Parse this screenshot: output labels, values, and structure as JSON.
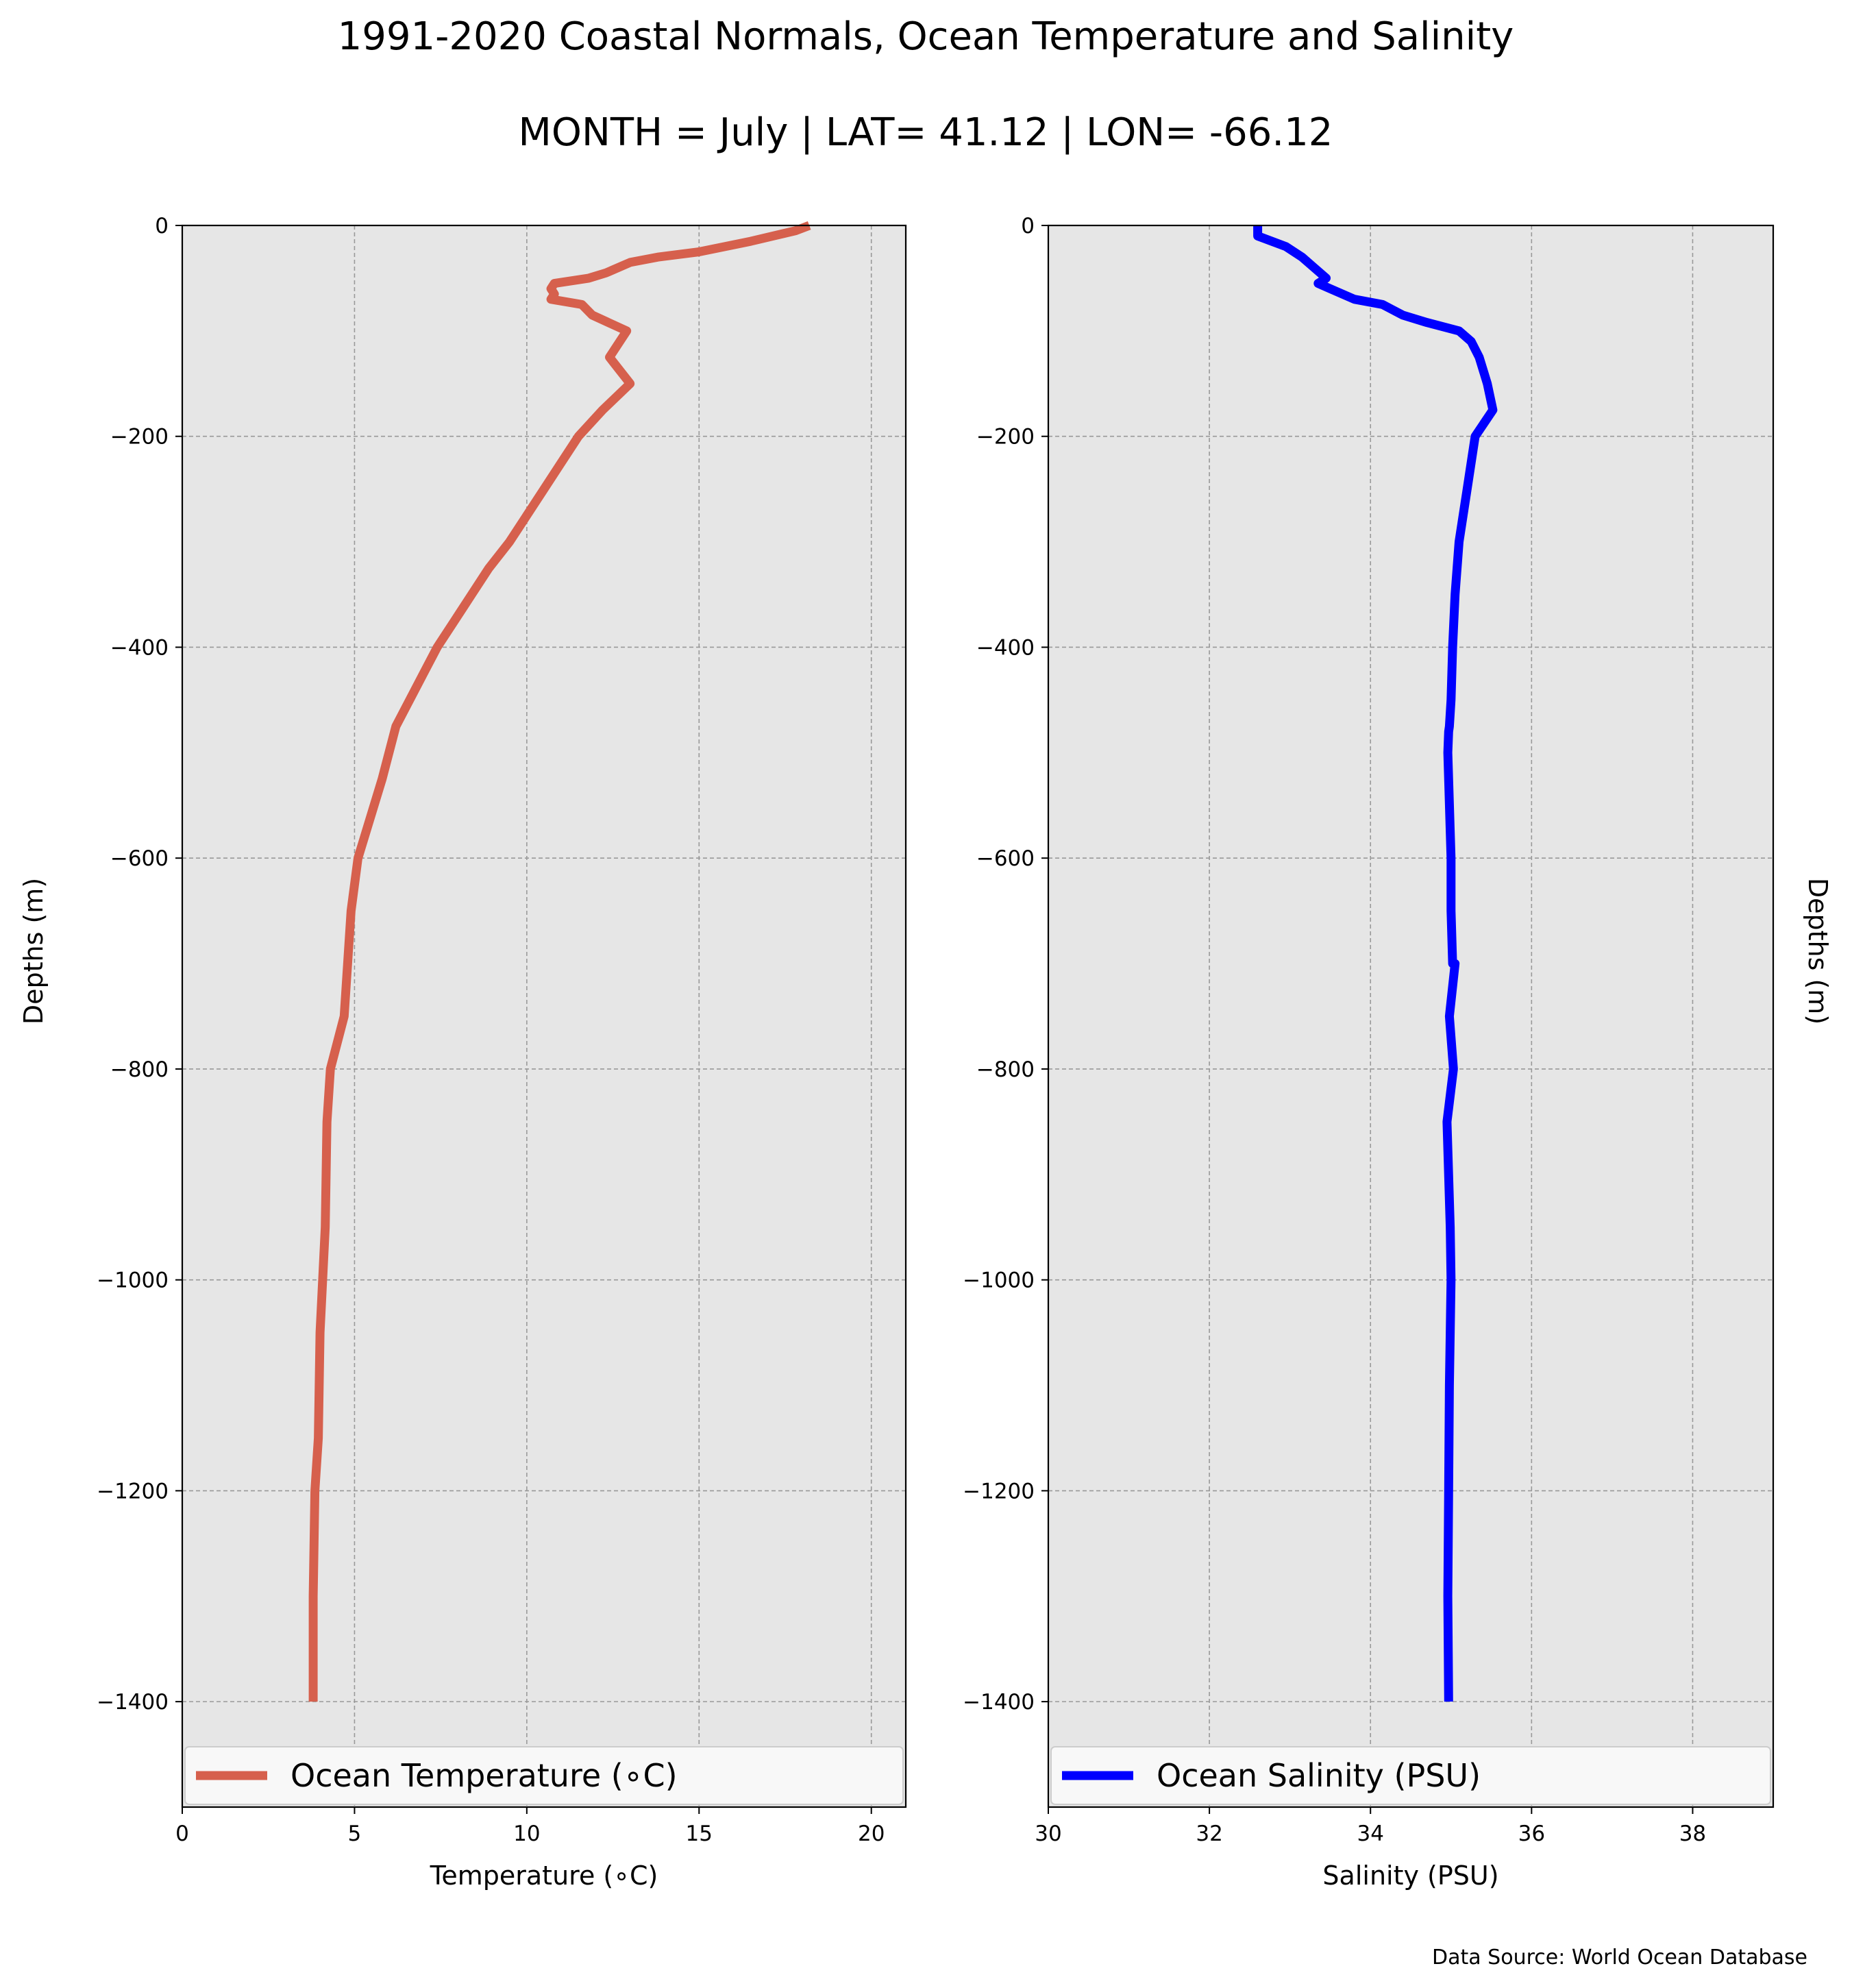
{
  "figure": {
    "title": "1991-2020 Coastal Normals, Ocean Temperature and Salinity",
    "subtitle": "MONTH = July | LAT= 41.12 | LON= -66.12",
    "source": "Data Source: World Ocean Database"
  },
  "chart_data": [
    {
      "type": "line",
      "xlabel": "Temperature ($^\\circ$C)",
      "xlabel_display": "Temperature (∘C)",
      "ylabel": "Depths (m)",
      "xlim": [
        0,
        21
      ],
      "ylim": [
        -1500,
        0
      ],
      "xticks": [
        0,
        5,
        10,
        15,
        20
      ],
      "xtick_labels": [
        "0",
        "5",
        "10",
        "15",
        "20"
      ],
      "yticks": [
        0,
        -200,
        -400,
        -600,
        -800,
        -1000,
        -1200,
        -1400
      ],
      "ytick_labels": [
        "0",
        "−200",
        "−400",
        "−600",
        "−800",
        "−1000",
        "−1200",
        "−1400"
      ],
      "grid": true,
      "legend_position": "bottom",
      "series": [
        {
          "name": "Ocean Temperature (∘C)",
          "color": "#d6604d",
          "x": [
            18.2,
            17.8,
            16.5,
            15.0,
            13.8,
            13.0,
            12.3,
            11.8,
            10.8,
            10.7,
            10.8,
            10.7,
            11.6,
            11.9,
            12.9,
            12.4,
            13.0,
            12.2,
            11.5,
            11.0,
            10.5,
            10.0,
            9.5,
            8.9,
            8.4,
            7.9,
            7.4,
            7.0,
            6.6,
            6.2,
            5.8,
            5.1,
            4.9,
            4.7,
            4.3,
            4.2,
            4.15,
            4.0,
            3.95,
            3.85,
            3.8,
            3.8
          ],
          "y": [
            0,
            -5,
            -15,
            -25,
            -30,
            -35,
            -45,
            -50,
            -55,
            -60,
            -65,
            -70,
            -75,
            -85,
            -100,
            -125,
            -150,
            -175,
            -200,
            -225,
            -250,
            -275,
            -300,
            -325,
            -350,
            -375,
            -400,
            -425,
            -450,
            -475,
            -525,
            -600,
            -650,
            -750,
            -800,
            -850,
            -950,
            -1050,
            -1150,
            -1200,
            -1300,
            -1400
          ]
        }
      ]
    },
    {
      "type": "line",
      "xlabel": "Salinity (PSU)",
      "ylabel": "Depths (m)",
      "xlim": [
        30,
        39
      ],
      "ylim": [
        -1500,
        0
      ],
      "xticks": [
        30,
        32,
        34,
        36,
        38
      ],
      "xtick_labels": [
        "30",
        "32",
        "34",
        "36",
        "38"
      ],
      "yticks": [
        0,
        -200,
        -400,
        -600,
        -800,
        -1000,
        -1200,
        -1400
      ],
      "ytick_labels": [
        "0",
        "−200",
        "−400",
        "−600",
        "−800",
        "−1000",
        "−1200",
        "−1400"
      ],
      "grid": true,
      "legend_position": "bottom",
      "series": [
        {
          "name": "Ocean Salinity (PSU)",
          "color": "#0000ff",
          "x": [
            32.6,
            32.6,
            32.6,
            32.95,
            33.15,
            33.3,
            33.45,
            33.35,
            33.5,
            33.8,
            34.15,
            34.4,
            34.7,
            35.1,
            35.25,
            35.35,
            35.45,
            35.52,
            35.3,
            35.2,
            35.15,
            35.1,
            35.05,
            35.02,
            35.0,
            34.98,
            34.97,
            34.96,
            35.0,
            35.0,
            35.02,
            35.05,
            34.98,
            35.03,
            34.95,
            34.99,
            35.0,
            34.98,
            34.97,
            34.96,
            34.97
          ],
          "y": [
            0,
            -5,
            -10,
            -20,
            -30,
            -40,
            -50,
            -55,
            -60,
            -70,
            -75,
            -85,
            -92,
            -100,
            -110,
            -125,
            -150,
            -175,
            -200,
            -250,
            -275,
            -300,
            -350,
            -400,
            -450,
            -475,
            -480,
            -500,
            -600,
            -650,
            -700,
            -700,
            -750,
            -800,
            -850,
            -950,
            -1000,
            -1100,
            -1200,
            -1300,
            -1400
          ]
        }
      ]
    }
  ]
}
